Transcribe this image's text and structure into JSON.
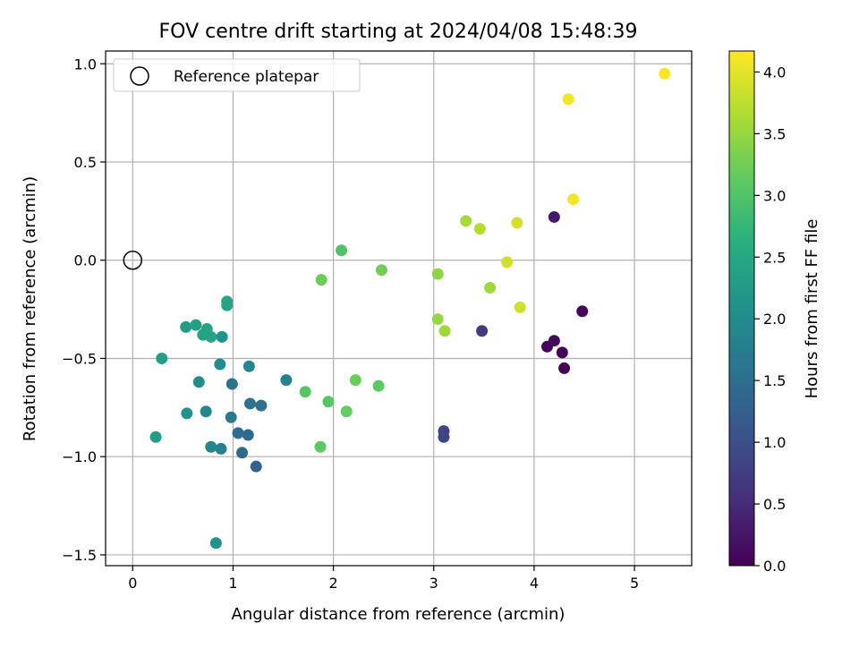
{
  "chart_data": {
    "type": "scatter",
    "title": "FOV centre drift starting at 2024/04/08 15:48:39",
    "xlabel": "Angular distance from reference (arcmin)",
    "ylabel": "Rotation from reference (arcmin)",
    "xlim": [
      -0.27,
      5.57
    ],
    "ylim": [
      -1.555,
      1.065
    ],
    "xticks": [
      0,
      1,
      2,
      3,
      4,
      5
    ],
    "xtick_labels": [
      "0",
      "1",
      "2",
      "3",
      "4",
      "5"
    ],
    "yticks": [
      -1.5,
      -1.0,
      -0.5,
      0.0,
      0.5,
      1.0
    ],
    "ytick_labels": [
      "−1.5",
      "−1.0",
      "−0.5",
      "0.0",
      "0.5",
      "1.0"
    ],
    "grid": true,
    "legend": {
      "placement": "top-left",
      "entries": [
        {
          "label": "Reference platepar",
          "marker": "open-circle"
        }
      ]
    },
    "reference_point": {
      "x": 0.0,
      "y": 0.0
    },
    "colorbar": {
      "label": "Hours from first FF file",
      "colormap": "viridis",
      "range": [
        0.0,
        4.17
      ],
      "ticks": [
        0.0,
        0.5,
        1.0,
        1.5,
        2.0,
        2.5,
        3.0,
        3.5,
        4.0
      ],
      "tick_labels": [
        "0.0",
        "0.5",
        "1.0",
        "1.5",
        "2.0",
        "2.5",
        "3.0",
        "3.5",
        "4.0"
      ]
    },
    "points": [
      {
        "x": 4.13,
        "y": -0.44,
        "c": 0.05
      },
      {
        "x": 4.2,
        "y": -0.41,
        "c": 0.1
      },
      {
        "x": 4.28,
        "y": -0.47,
        "c": 0.05
      },
      {
        "x": 4.3,
        "y": -0.55,
        "c": 0.0
      },
      {
        "x": 4.48,
        "y": -0.26,
        "c": 0.1
      },
      {
        "x": 4.2,
        "y": 0.22,
        "c": 0.3
      },
      {
        "x": 3.48,
        "y": -0.36,
        "c": 0.7
      },
      {
        "x": 3.1,
        "y": -0.87,
        "c": 0.8
      },
      {
        "x": 3.1,
        "y": -0.9,
        "c": 0.85
      },
      {
        "x": 1.23,
        "y": -1.05,
        "c": 1.3
      },
      {
        "x": 1.09,
        "y": -0.98,
        "c": 1.45
      },
      {
        "x": 1.15,
        "y": -0.89,
        "c": 1.4
      },
      {
        "x": 1.05,
        "y": -0.88,
        "c": 1.5
      },
      {
        "x": 1.28,
        "y": -0.74,
        "c": 1.55
      },
      {
        "x": 1.17,
        "y": -0.73,
        "c": 1.6
      },
      {
        "x": 0.99,
        "y": -0.63,
        "c": 1.6
      },
      {
        "x": 0.98,
        "y": -0.8,
        "c": 1.7
      },
      {
        "x": 0.88,
        "y": -0.96,
        "c": 1.8
      },
      {
        "x": 0.78,
        "y": -0.95,
        "c": 1.9
      },
      {
        "x": 0.73,
        "y": -0.77,
        "c": 1.9
      },
      {
        "x": 0.54,
        "y": -0.78,
        "c": 2.1
      },
      {
        "x": 0.66,
        "y": -0.62,
        "c": 2.0
      },
      {
        "x": 0.87,
        "y": -0.53,
        "c": 2.0
      },
      {
        "x": 1.16,
        "y": -0.54,
        "c": 1.9
      },
      {
        "x": 1.53,
        "y": -0.61,
        "c": 1.8
      },
      {
        "x": 0.89,
        "y": -0.39,
        "c": 2.1
      },
      {
        "x": 0.83,
        "y": -1.44,
        "c": 2.1
      },
      {
        "x": 0.23,
        "y": -0.9,
        "c": 2.3
      },
      {
        "x": 0.29,
        "y": -0.5,
        "c": 2.3
      },
      {
        "x": 0.53,
        "y": -0.34,
        "c": 2.3
      },
      {
        "x": 0.63,
        "y": -0.33,
        "c": 2.35
      },
      {
        "x": 0.7,
        "y": -0.38,
        "c": 2.4
      },
      {
        "x": 0.78,
        "y": -0.39,
        "c": 2.4
      },
      {
        "x": 0.74,
        "y": -0.35,
        "c": 2.4
      },
      {
        "x": 0.94,
        "y": -0.21,
        "c": 2.4
      },
      {
        "x": 0.94,
        "y": -0.23,
        "c": 2.4
      },
      {
        "x": 1.72,
        "y": -0.67,
        "c": 3.05
      },
      {
        "x": 1.95,
        "y": -0.72,
        "c": 3.05
      },
      {
        "x": 1.87,
        "y": -0.95,
        "c": 3.1
      },
      {
        "x": 2.13,
        "y": -0.77,
        "c": 3.15
      },
      {
        "x": 2.22,
        "y": -0.61,
        "c": 3.2
      },
      {
        "x": 2.45,
        "y": -0.64,
        "c": 3.1
      },
      {
        "x": 2.08,
        "y": 0.05,
        "c": 3.0
      },
      {
        "x": 1.88,
        "y": -0.1,
        "c": 3.2
      },
      {
        "x": 2.48,
        "y": -0.05,
        "c": 3.25
      },
      {
        "x": 3.04,
        "y": -0.07,
        "c": 3.45
      },
      {
        "x": 3.04,
        "y": -0.3,
        "c": 3.5
      },
      {
        "x": 3.11,
        "y": -0.36,
        "c": 3.55
      },
      {
        "x": 3.56,
        "y": -0.14,
        "c": 3.55
      },
      {
        "x": 3.32,
        "y": 0.2,
        "c": 3.6
      },
      {
        "x": 3.46,
        "y": 0.16,
        "c": 3.7
      },
      {
        "x": 3.73,
        "y": -0.01,
        "c": 3.85
      },
      {
        "x": 3.83,
        "y": 0.19,
        "c": 3.9
      },
      {
        "x": 3.86,
        "y": -0.24,
        "c": 3.85
      },
      {
        "x": 4.39,
        "y": 0.31,
        "c": 4.1
      },
      {
        "x": 4.34,
        "y": 0.82,
        "c": 4.1
      },
      {
        "x": 5.3,
        "y": 0.95,
        "c": 4.17
      }
    ]
  }
}
